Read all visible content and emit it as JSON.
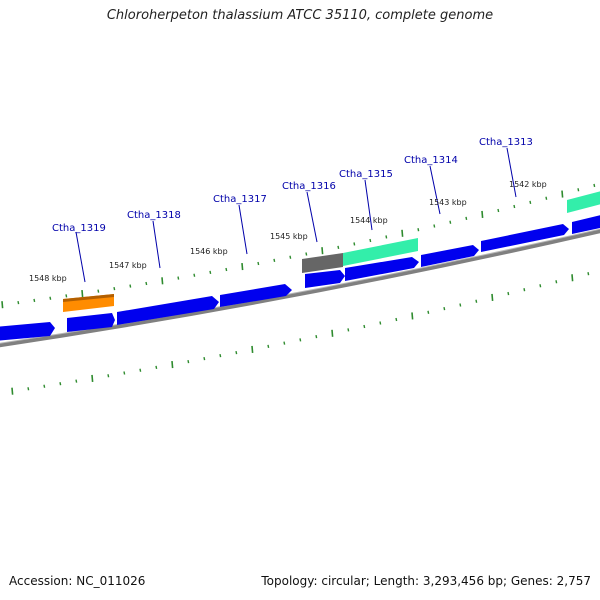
{
  "title": "Chloroherpeton thalassium ATCC 35110, complete genome",
  "footer": {
    "accession": "Accession: NC_011026",
    "topology": "Topology: circular; Length: 3,293,456 bp; Genes: 2,757"
  },
  "colors": {
    "forward_cds": "#0000ee",
    "backbone": "#808080",
    "tick": "#2e8b2e",
    "rna_orange": "#ff8c00",
    "feature_teal": "#33eeaa",
    "feature_gray": "#666666",
    "gene_label": "#0000aa"
  },
  "kbp_labels": [
    "1548 kbp",
    "1547 kbp",
    "1546 kbp",
    "1545 kbp",
    "1544 kbp",
    "1543 kbp",
    "1542 kbp"
  ],
  "gene_labels": [
    "Ctha_1319",
    "Ctha_1318",
    "Ctha_1317",
    "Ctha_1316",
    "Ctha_1315",
    "Ctha_1314",
    "Ctha_1313"
  ]
}
